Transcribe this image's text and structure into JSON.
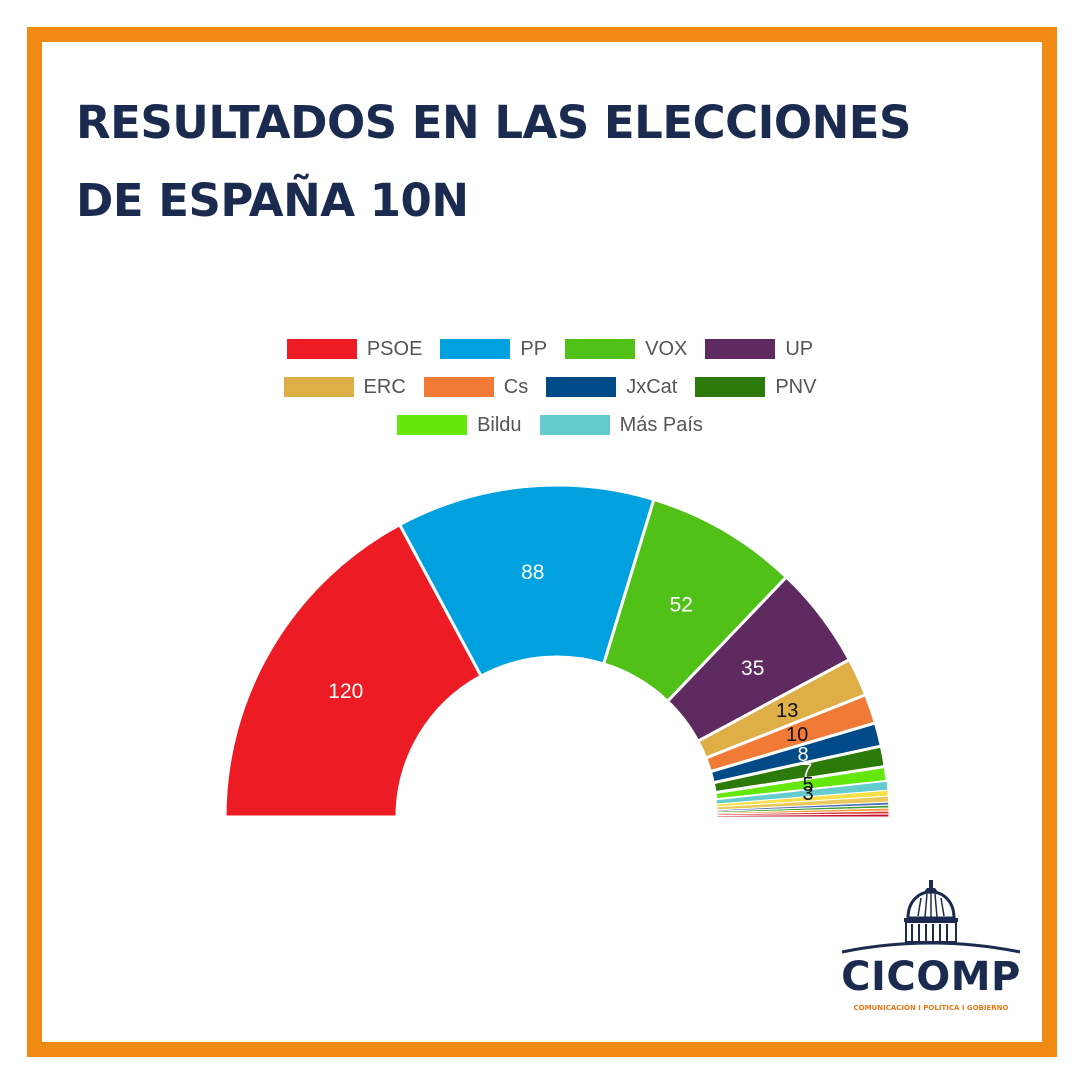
{
  "title": {
    "line1": "RESULTADOS EN LAS ELECCIONES",
    "line2": "DE ESPAÑA 10N"
  },
  "colors": {
    "frame": "#f08a12",
    "title": "#1b2b4f"
  },
  "chart_data": {
    "type": "pie",
    "subtype": "half-donut (parliament hemicycle)",
    "title": "",
    "legend_position": "top",
    "legend": [
      {
        "name": "PSOE",
        "color": "#ed1c24"
      },
      {
        "name": "PP",
        "color": "#00a1de"
      },
      {
        "name": "VOX",
        "color": "#52c117"
      },
      {
        "name": "UP",
        "color": "#5e2a5f"
      },
      {
        "name": "ERC",
        "color": "#deaf47"
      },
      {
        "name": "Cs",
        "color": "#f07a36"
      },
      {
        "name": "JxCat",
        "color": "#004a87"
      },
      {
        "name": "PNV",
        "color": "#2c7a0a"
      },
      {
        "name": "Bildu",
        "color": "#64e80c"
      },
      {
        "name": "Más País",
        "color": "#64cccc"
      }
    ],
    "slices": [
      {
        "name": "PSOE",
        "value": 120,
        "color": "#ed1c24",
        "label": "120",
        "label_color": "#ffffff"
      },
      {
        "name": "PP",
        "value": 88,
        "color": "#00a1de",
        "label": "88",
        "label_color": "#ffffff"
      },
      {
        "name": "VOX",
        "value": 52,
        "color": "#52c117",
        "label": "52",
        "label_color": "#ffffff"
      },
      {
        "name": "UP",
        "value": 35,
        "color": "#5e2a5f",
        "label": "35",
        "label_color": "#ffffff"
      },
      {
        "name": "ERC",
        "value": 13,
        "color": "#deaf47",
        "label": "13",
        "label_color": "#111111"
      },
      {
        "name": "Cs",
        "value": 10,
        "color": "#f07a36",
        "label": "10",
        "label_color": "#111111"
      },
      {
        "name": "JxCat",
        "value": 8,
        "color": "#004a87",
        "label": "8",
        "label_color": "#ffffff"
      },
      {
        "name": "PNV",
        "value": 7,
        "color": "#2c7a0a",
        "label": "7",
        "label_color": "#ffffff"
      },
      {
        "name": "Bildu",
        "value": 5,
        "color": "#64e80c",
        "label": "5",
        "label_color": "#111111"
      },
      {
        "name": "Más País",
        "value": 3,
        "color": "#64cccc",
        "label": "3",
        "label_color": "#111111"
      },
      {
        "name": "",
        "value": 2,
        "color": "#f5e04a",
        "label": ""
      },
      {
        "name": "",
        "value": 2,
        "color": "#e8c95a",
        "label": ""
      },
      {
        "name": "",
        "value": 1,
        "color": "#4a6fb5",
        "label": ""
      },
      {
        "name": "",
        "value": 1,
        "color": "#3c9d3a",
        "label": ""
      },
      {
        "name": "",
        "value": 1,
        "color": "#f59a3a",
        "label": ""
      },
      {
        "name": "",
        "value": 1,
        "color": "#d93a3a",
        "label": ""
      },
      {
        "name": "",
        "value": 1,
        "color": "#c8102e",
        "label": ""
      }
    ]
  },
  "logo": {
    "name": "CICOMP",
    "tagline": "COMUNICACIÓN  I  POLÍTICA  I  GOBIERNO"
  }
}
